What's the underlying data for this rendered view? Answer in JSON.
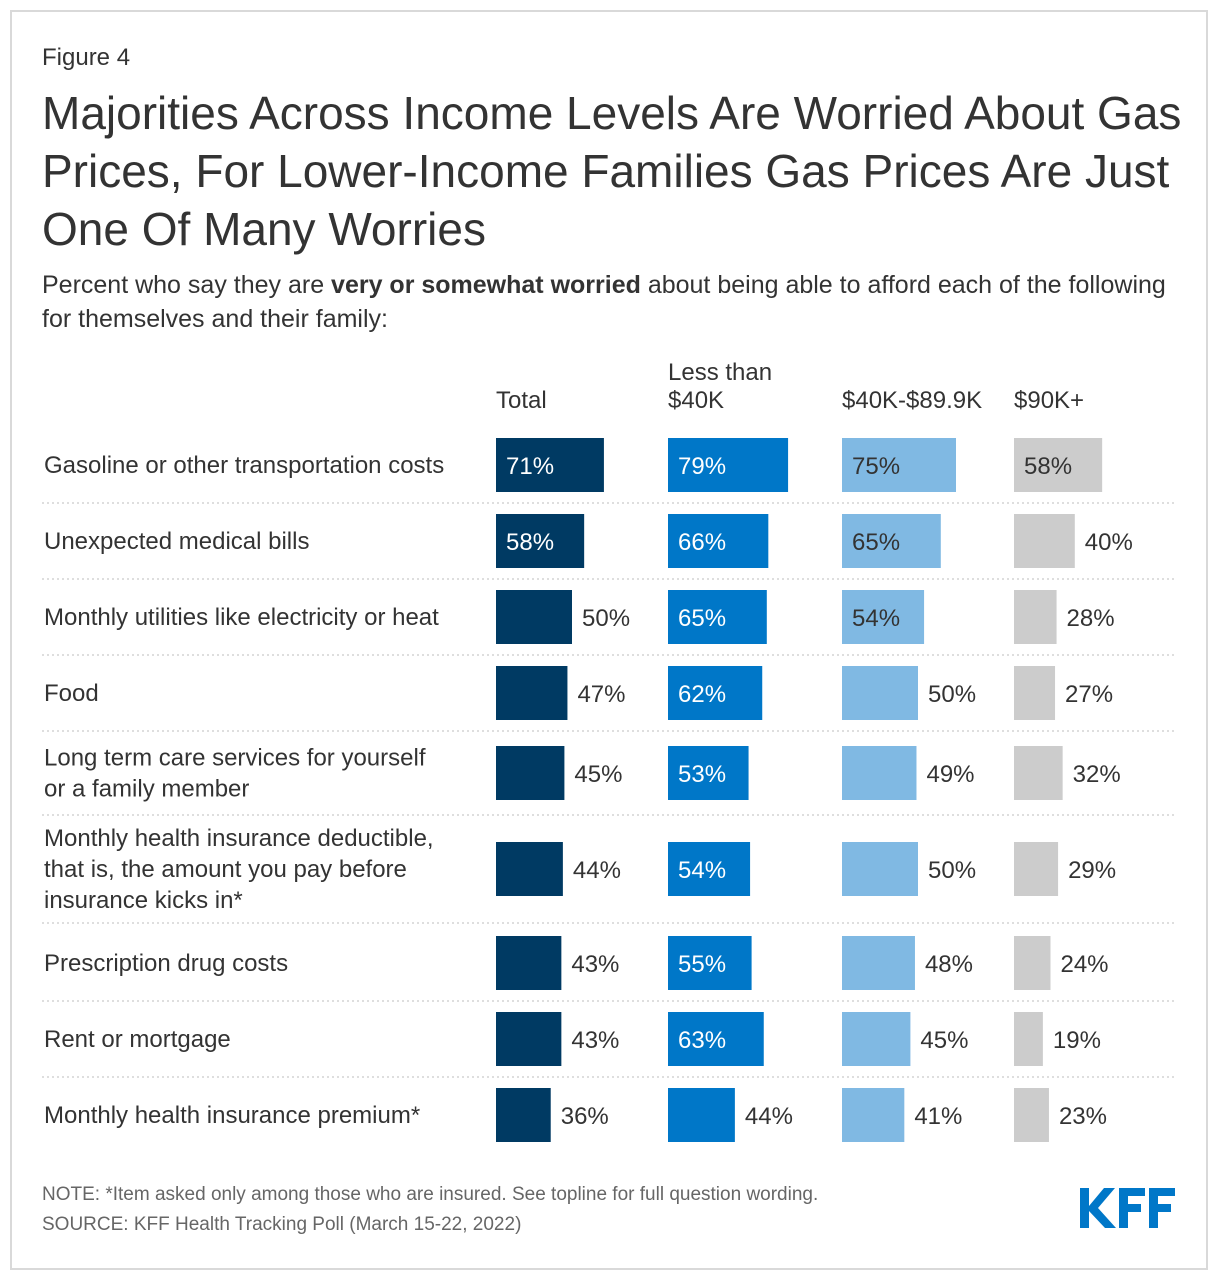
{
  "figure_label": "Figure 4",
  "title": "Majorities Across Income Levels Are Worried About Gas Prices, For Lower-Income Families Gas Prices Are Just One Of Many Worries",
  "subtitle": {
    "pre": "Percent who say they are ",
    "bold": "very or somewhat worried",
    "post": " about being able to afford each of the following for themselves and their family:"
  },
  "chart_data": {
    "type": "bar",
    "orientation": "horizontal",
    "layout": "small-multiples",
    "categories": [
      "Gasoline or other transportation costs",
      "Unexpected medical bills",
      "Monthly utilities like electricity or heat",
      "Food",
      "Long term care services for yourself or a family member",
      "Monthly health insurance deductible, that is, the amount you pay before insurance kicks in*",
      "Prescription drug costs",
      "Rent or mortgage",
      "Monthly health insurance premium*"
    ],
    "category_lines": [
      [
        "Gasoline or other transportation costs"
      ],
      [
        "Unexpected medical bills"
      ],
      [
        "Monthly utilities like electricity or heat"
      ],
      [
        "Food"
      ],
      [
        "Long term care services for yourself",
        "or a family member"
      ],
      [
        "Monthly health insurance deductible,",
        "that is, the amount you pay before",
        "insurance kicks in*"
      ],
      [
        "Prescription drug costs"
      ],
      [
        "Rent or mortgage"
      ],
      [
        "Monthly health insurance premium*"
      ]
    ],
    "series": [
      {
        "name": "Total",
        "header_lines": [
          "Total"
        ],
        "color": "#003a63",
        "values": [
          71,
          58,
          50,
          47,
          45,
          44,
          43,
          43,
          36
        ]
      },
      {
        "name": "Less than $40K",
        "header_lines": [
          "Less than",
          "$40K"
        ],
        "color": "#0077c8",
        "values": [
          79,
          66,
          65,
          62,
          53,
          54,
          55,
          63,
          44
        ]
      },
      {
        "name": "$40K-$89.9K",
        "header_lines": [
          "$40K-$89.9K"
        ],
        "color": "#80b9e3",
        "values": [
          75,
          65,
          54,
          50,
          49,
          50,
          48,
          45,
          41
        ]
      },
      {
        "name": "$90K+",
        "header_lines": [
          "$90K+"
        ],
        "color": "#cccccc",
        "values": [
          58,
          40,
          28,
          27,
          32,
          29,
          24,
          19,
          23
        ]
      }
    ],
    "value_suffix": "%",
    "xlim": [
      0,
      100
    ],
    "grid": false,
    "legend": "column-headers"
  },
  "note": "NOTE: *Item asked only among those who are insured. See topline for full question wording.",
  "source": "SOURCE: KFF Health Tracking Poll (March 15-22, 2022)",
  "logo": {
    "text": "KFF",
    "color": "#0077c8"
  }
}
